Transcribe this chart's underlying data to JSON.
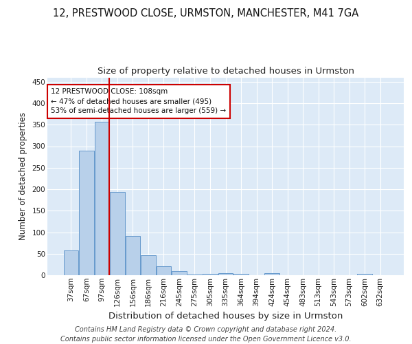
{
  "title1": "12, PRESTWOOD CLOSE, URMSTON, MANCHESTER, M41 7GA",
  "title2": "Size of property relative to detached houses in Urmston",
  "xlabel": "Distribution of detached houses by size in Urmston",
  "ylabel": "Number of detached properties",
  "categories": [
    "37sqm",
    "67sqm",
    "97sqm",
    "126sqm",
    "156sqm",
    "186sqm",
    "216sqm",
    "245sqm",
    "275sqm",
    "305sqm",
    "335sqm",
    "364sqm",
    "394sqm",
    "424sqm",
    "454sqm",
    "483sqm",
    "513sqm",
    "543sqm",
    "573sqm",
    "602sqm",
    "632sqm"
  ],
  "values": [
    58,
    290,
    357,
    193,
    91,
    47,
    21,
    9,
    2,
    4,
    5,
    3,
    0,
    5,
    0,
    0,
    0,
    0,
    0,
    3,
    0
  ],
  "bar_color": "#b8d0ea",
  "bar_edge_color": "#6699cc",
  "vline_color": "#cc0000",
  "vline_x_index": 2,
  "annotation_text": "12 PRESTWOOD CLOSE: 108sqm\n← 47% of detached houses are smaller (495)\n53% of semi-detached houses are larger (559) →",
  "annotation_box_color": "white",
  "annotation_box_edge": "#cc0000",
  "footer1": "Contains HM Land Registry data © Crown copyright and database right 2024.",
  "footer2": "Contains public sector information licensed under the Open Government Licence v3.0.",
  "background_color": "#ddeaf7",
  "grid_color": "#ffffff",
  "ylim": [
    0,
    460
  ],
  "yticks": [
    0,
    50,
    100,
    150,
    200,
    250,
    300,
    350,
    400,
    450
  ],
  "title1_fontsize": 10.5,
  "title2_fontsize": 9.5,
  "xlabel_fontsize": 9.5,
  "ylabel_fontsize": 8.5,
  "tick_fontsize": 7.5,
  "annot_fontsize": 7.5,
  "footer_fontsize": 7.0
}
